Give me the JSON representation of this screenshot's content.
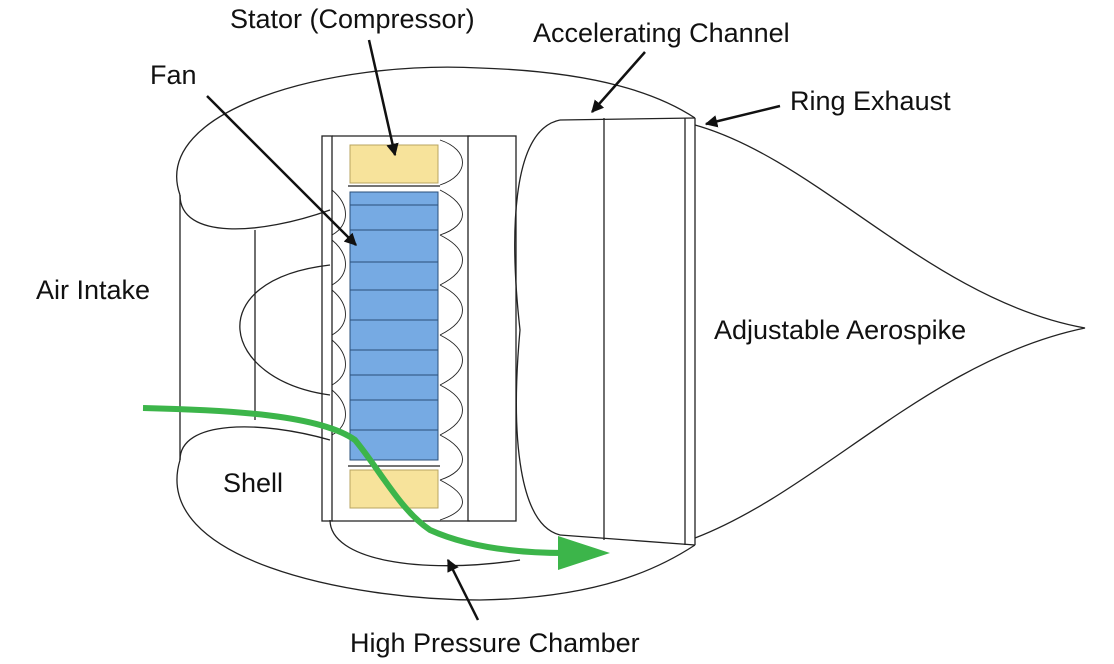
{
  "labels": {
    "stator": "Stator (Compressor)",
    "fan": "Fan",
    "accelerating_channel": "Accelerating Channel",
    "ring_exhaust": "Ring Exhaust",
    "air_intake": "Air Intake",
    "adjustable_aerospike": "Adjustable Aerospike",
    "shell": "Shell",
    "high_pressure_chamber": "High Pressure Chamber"
  },
  "colors": {
    "outline": "#222222",
    "stator_fill": "#f7e39b",
    "fan_fill": "#76aae3",
    "airflow_arrow": "#3cb54a",
    "label_text": "#111111"
  }
}
